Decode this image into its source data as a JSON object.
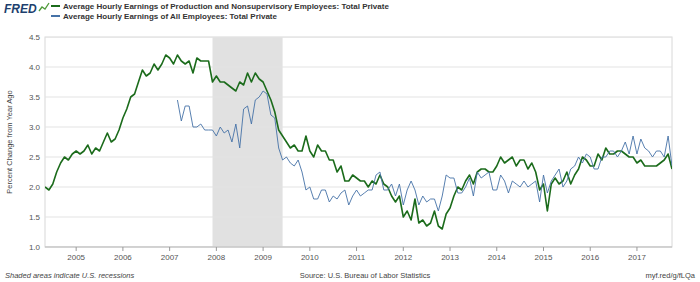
{
  "chart_data": {
    "type": "line",
    "logo": "FRED",
    "y_label": "Percent Change from Year Ago",
    "note": "Shaded areas indicate U.S. recessions",
    "source": "Source: U.S. Bureau of Labor Statistics",
    "url": "myf.red/g/fLQa",
    "legend": "top",
    "grid": true,
    "xlim": [
      2004.333,
      2017.75
    ],
    "xticks": [
      2005,
      2006,
      2007,
      2008,
      2009,
      2010,
      2011,
      2012,
      2013,
      2014,
      2015,
      2016,
      2017
    ],
    "ylim": [
      1,
      4.5
    ],
    "yticks": [
      {
        "value": 1,
        "label": "1.0"
      },
      1.5,
      {
        "value": 2,
        "label": "2.0"
      },
      2.5,
      {
        "value": 3,
        "label": "3.0"
      },
      3.5,
      {
        "value": 4,
        "label": "4.0"
      },
      4.5
    ],
    "recessions": [
      {
        "start": 2007.917,
        "end": 2009.417
      }
    ],
    "x": [
      2004.333,
      2004.417,
      2004.5,
      2004.583,
      2004.667,
      2004.75,
      2004.833,
      2004.917,
      2005,
      2005.083,
      2005.167,
      2005.25,
      2005.333,
      2005.417,
      2005.5,
      2005.583,
      2005.667,
      2005.75,
      2005.833,
      2005.917,
      2006,
      2006.083,
      2006.167,
      2006.25,
      2006.333,
      2006.417,
      2006.5,
      2006.583,
      2006.667,
      2006.75,
      2006.833,
      2006.917,
      2007,
      2007.083,
      2007.167,
      2007.25,
      2007.333,
      2007.417,
      2007.5,
      2007.583,
      2007.667,
      2007.75,
      2007.833,
      2007.917,
      2008,
      2008.083,
      2008.167,
      2008.25,
      2008.333,
      2008.417,
      2008.5,
      2008.583,
      2008.667,
      2008.75,
      2008.833,
      2008.917,
      2009,
      2009.083,
      2009.167,
      2009.25,
      2009.333,
      2009.417,
      2009.5,
      2009.583,
      2009.667,
      2009.75,
      2009.833,
      2009.917,
      2010,
      2010.083,
      2010.167,
      2010.25,
      2010.333,
      2010.417,
      2010.5,
      2010.583,
      2010.667,
      2010.75,
      2010.833,
      2010.917,
      2011,
      2011.083,
      2011.167,
      2011.25,
      2011.333,
      2011.417,
      2011.5,
      2011.583,
      2011.667,
      2011.75,
      2011.833,
      2011.917,
      2012,
      2012.083,
      2012.167,
      2012.25,
      2012.333,
      2012.417,
      2012.5,
      2012.583,
      2012.667,
      2012.75,
      2012.833,
      2012.917,
      2013,
      2013.083,
      2013.167,
      2013.25,
      2013.333,
      2013.417,
      2013.5,
      2013.583,
      2013.667,
      2013.75,
      2013.833,
      2013.917,
      2014,
      2014.083,
      2014.167,
      2014.25,
      2014.333,
      2014.417,
      2014.5,
      2014.583,
      2014.667,
      2014.75,
      2014.833,
      2014.917,
      2015,
      2015.083,
      2015.167,
      2015.25,
      2015.333,
      2015.417,
      2015.5,
      2015.583,
      2015.667,
      2015.75,
      2015.833,
      2015.917,
      2016,
      2016.083,
      2016.167,
      2016.25,
      2016.333,
      2016.417,
      2016.5,
      2016.583,
      2016.667,
      2016.75,
      2016.833,
      2016.917,
      2017,
      2017.083,
      2017.167,
      2017.25,
      2017.333,
      2017.417,
      2017.5,
      2017.583,
      2017.667,
      2017.75
    ],
    "series": [
      {
        "name": "Average Hourly Earnings of Production and Nonsupervisory Employees: Total Private",
        "color": "#1b6b1b",
        "values": [
          2.0,
          1.95,
          2.05,
          2.25,
          2.4,
          2.5,
          2.45,
          2.55,
          2.6,
          2.55,
          2.6,
          2.7,
          2.55,
          2.65,
          2.6,
          2.75,
          2.9,
          2.75,
          2.8,
          2.95,
          3.15,
          3.3,
          3.5,
          3.55,
          3.75,
          3.95,
          3.85,
          3.9,
          4.05,
          3.95,
          4.05,
          4.2,
          4.15,
          4.05,
          4.2,
          4.1,
          4.05,
          4.1,
          3.9,
          4.15,
          4.1,
          4.1,
          4.1,
          3.75,
          3.85,
          3.75,
          3.75,
          3.7,
          3.65,
          3.6,
          3.75,
          3.7,
          3.9,
          3.75,
          3.9,
          3.8,
          3.75,
          3.6,
          3.45,
          3.25,
          2.95,
          2.85,
          2.75,
          2.65,
          2.7,
          2.6,
          2.6,
          2.85,
          2.6,
          2.5,
          2.7,
          2.6,
          2.6,
          2.45,
          2.45,
          2.25,
          2.35,
          2.1,
          2.1,
          2.2,
          2.15,
          2.1,
          2.1,
          2.0,
          2.1,
          2.05,
          2.2,
          2.05,
          2.0,
          1.85,
          1.75,
          1.85,
          1.5,
          1.6,
          1.45,
          1.8,
          1.4,
          1.45,
          1.35,
          1.4,
          1.6,
          1.35,
          1.3,
          1.55,
          1.65,
          1.85,
          2.0,
          1.95,
          2.1,
          2.2,
          2.05,
          2.25,
          2.3,
          2.3,
          2.25,
          2.25,
          2.35,
          2.5,
          2.4,
          2.45,
          2.5,
          2.35,
          2.45,
          2.45,
          2.3,
          2.4,
          2.25,
          1.95,
          2.05,
          1.6,
          2.05,
          2.15,
          2.05,
          2.1,
          2.25,
          2.05,
          2.2,
          2.3,
          2.5,
          2.45,
          2.35,
          2.35,
          2.55,
          2.45,
          2.65,
          2.55,
          2.55,
          2.6,
          2.6,
          2.55,
          2.5,
          2.5,
          2.4,
          2.45,
          2.35,
          2.35,
          2.35,
          2.35,
          2.4,
          2.45,
          2.55,
          2.3
        ]
      },
      {
        "name": "Average Hourly Earnings of All Employees: Total Private",
        "color": "#4572a7",
        "values": [
          null,
          null,
          null,
          null,
          null,
          null,
          null,
          null,
          null,
          null,
          null,
          null,
          null,
          null,
          null,
          null,
          null,
          null,
          null,
          null,
          null,
          null,
          null,
          null,
          null,
          null,
          null,
          null,
          null,
          null,
          null,
          null,
          null,
          null,
          3.45,
          3.1,
          3.35,
          3.35,
          3.0,
          3.0,
          3.05,
          2.95,
          2.95,
          2.95,
          2.85,
          3.0,
          2.9,
          2.95,
          2.75,
          3.05,
          2.65,
          3.3,
          3.35,
          3.05,
          3.45,
          3.5,
          3.6,
          3.55,
          3.2,
          3.15,
          2.65,
          2.45,
          2.5,
          2.4,
          2.35,
          2.45,
          2.25,
          1.95,
          2.0,
          1.8,
          1.8,
          1.95,
          1.95,
          1.75,
          1.85,
          1.8,
          1.9,
          1.95,
          1.7,
          1.85,
          1.95,
          1.85,
          1.9,
          1.95,
          1.95,
          2.2,
          2.25,
          1.95,
          1.95,
          2.05,
          1.85,
          2.05,
          1.7,
          1.95,
          2.1,
          1.95,
          1.7,
          1.85,
          1.75,
          1.8,
          1.8,
          1.6,
          1.85,
          2.2,
          2.15,
          2.15,
          1.9,
          1.9,
          2.0,
          2.15,
          1.85,
          2.25,
          2.15,
          2.2,
          2.25,
          1.95,
          1.95,
          2.2,
          2.1,
          1.9,
          2.1,
          2.05,
          2.0,
          2.1,
          2.0,
          2.05,
          2.1,
          1.75,
          2.2,
          1.9,
          2.1,
          2.2,
          2.3,
          2.0,
          2.1,
          2.3,
          2.35,
          2.5,
          2.4,
          2.55,
          2.5,
          2.3,
          2.3,
          2.5,
          2.5,
          2.6,
          2.6,
          2.5,
          2.6,
          2.75,
          2.55,
          2.85,
          2.55,
          2.8,
          2.65,
          2.6,
          2.5,
          2.6,
          2.6,
          2.5,
          2.85,
          2.35
        ]
      }
    ]
  }
}
